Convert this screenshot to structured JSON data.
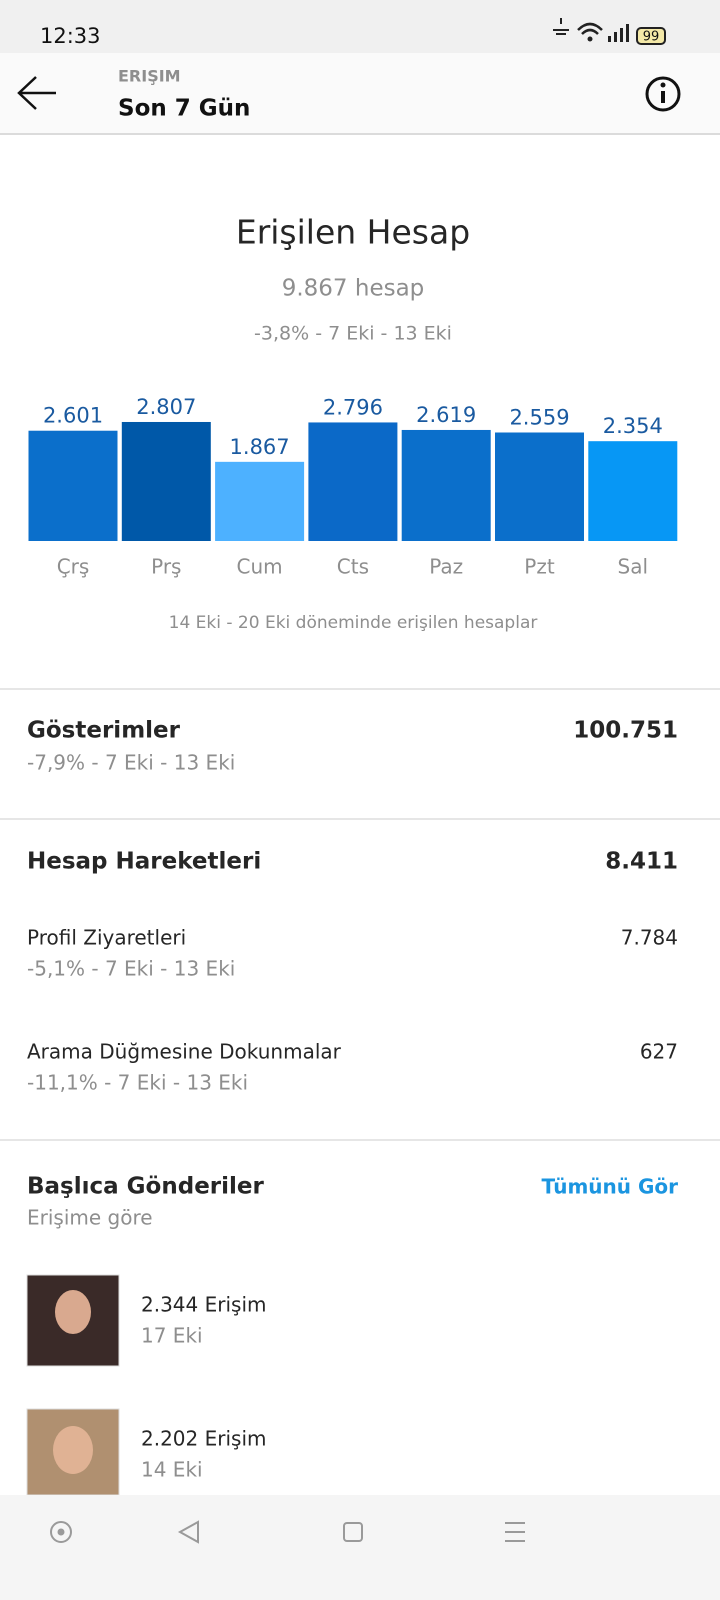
{
  "status_bar": {
    "time": "12:33",
    "battery": "99"
  },
  "header": {
    "overline": "ERIŞIM",
    "title": "Son 7 Gün"
  },
  "chart_data": {
    "type": "bar",
    "title": "Erişilen Hesap",
    "subtitle": "9.867 hesap",
    "annotation": "-3,8% - 7 Eki - 13 Eki",
    "categories": [
      "Çrş",
      "Prş",
      "Cum",
      "Cts",
      "Paz",
      "Pzt",
      "Sal"
    ],
    "values": [
      2601,
      2807,
      1867,
      2796,
      2619,
      2559,
      2354
    ],
    "value_labels": [
      "2.601",
      "2.807",
      "1.867",
      "2.796",
      "2.619",
      "2.559",
      "2.354"
    ],
    "colors": [
      "#0b6fcb",
      "#0058a8",
      "#4db1ff",
      "#0b69c8",
      "#0b6fcb",
      "#0b6fcb",
      "#0797f5"
    ],
    "caption": "14 Eki - 20 Eki döneminde erişilen hesaplar"
  },
  "impressions": {
    "label": "Gösterimler",
    "value": "100.751",
    "change": "-7,9% - 7 Eki - 13 Eki"
  },
  "account_actions": {
    "label": "Hesap Hareketleri",
    "value": "8.411",
    "items": [
      {
        "label": "Profil Ziyaretleri",
        "value": "7.784",
        "change": "-5,1% - 7 Eki - 13 Eki"
      },
      {
        "label": "Arama Düğmesine Dokunmalar",
        "value": "627",
        "change": "-11,1% - 7 Eki - 13 Eki"
      }
    ]
  },
  "top_posts": {
    "title": "Başlıca Gönderiler",
    "subtitle": "Erişime göre",
    "link": "Tümünü Gör",
    "posts": [
      {
        "reach": "2.344 Erişim",
        "date": "17 Eki"
      },
      {
        "reach": "2.202 Erişim",
        "date": "14 Eki"
      }
    ]
  }
}
